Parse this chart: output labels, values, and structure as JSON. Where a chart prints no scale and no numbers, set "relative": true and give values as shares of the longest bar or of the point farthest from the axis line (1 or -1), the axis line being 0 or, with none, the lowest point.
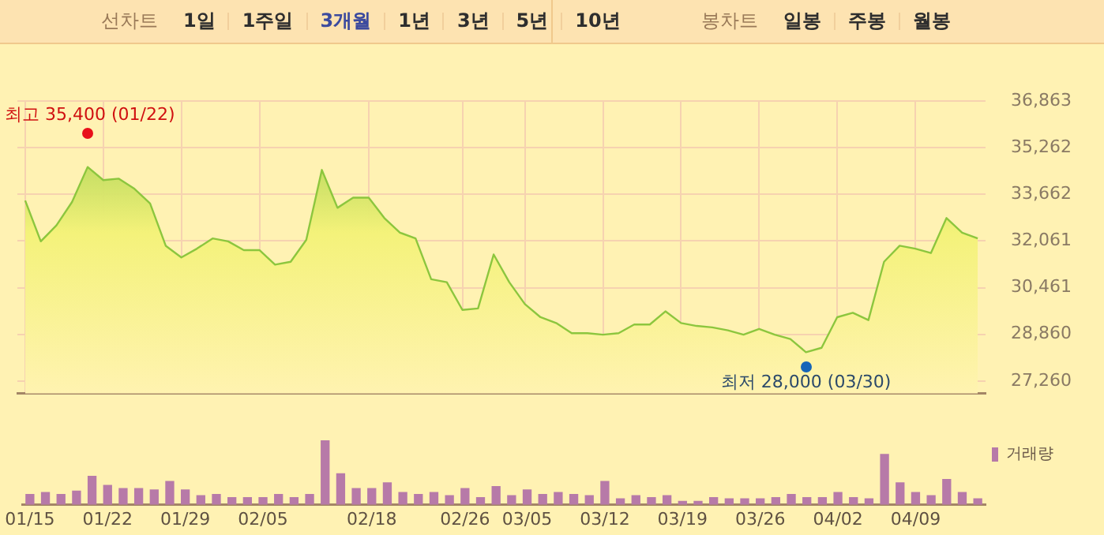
{
  "chart_data": [
    {
      "type": "other",
      "annotations": [
        "선차트",
        "1일",
        "1주일",
        "3개월",
        "1년",
        "3년",
        "5년",
        "10년",
        "봉차트",
        "일봉",
        "주봉",
        "월봉"
      ]
    },
    {
      "type": "area",
      "color": "#8cc63e",
      "grid": true,
      "tick_labels": "y",
      "categories": [
        null,
        null,
        null,
        null,
        null,
        null,
        null,
        null,
        null,
        null,
        null,
        null,
        null,
        null,
        null,
        null,
        null,
        null,
        null,
        null,
        null,
        null,
        null,
        null,
        null,
        null,
        null,
        null,
        null,
        null,
        null,
        null,
        null,
        null,
        null,
        null,
        null,
        null,
        null,
        null,
        null,
        null,
        null,
        null,
        null,
        null,
        null,
        null,
        null,
        null,
        null,
        null,
        null,
        null,
        null,
        null,
        null,
        null,
        null,
        null,
        null,
        null
      ],
      "values": [
        33450,
        32050,
        32600,
        33400,
        34600,
        34150,
        34200,
        33850,
        33350,
        31900,
        31500,
        31800,
        32150,
        32050,
        31750,
        31750,
        31250,
        31350,
        32100,
        34500,
        33200,
        33550,
        33550,
        32850,
        32350,
        32150,
        30750,
        30650,
        29700,
        29750,
        31600,
        30650,
        29900,
        29450,
        29250,
        28900,
        28900,
        28850,
        28900,
        29200,
        29200,
        29650,
        29250,
        29150,
        29100,
        29000,
        28850,
        29050,
        28850,
        28700,
        28250,
        28400,
        29450,
        29600,
        29350,
        31350,
        31900,
        31800,
        31650,
        32850,
        32350,
        32150
      ],
      "ylim": [
        26830,
        36863
      ],
      "yticks": [
        {
          "value": 27260,
          "label": "27,260"
        },
        {
          "value": 28860,
          "label": "28,860"
        },
        {
          "value": 30461,
          "label": "30,461"
        },
        {
          "value": 32061,
          "label": "32,061"
        },
        {
          "value": 33662,
          "label": "33,662"
        },
        {
          "value": 35262,
          "label": "35,262"
        },
        {
          "value": 36863,
          "label": "36,863"
        }
      ],
      "annotations": [
        "최고 35,400 (01/22)",
        "최저 28,000 (03/30)"
      ]
    },
    {
      "type": "bar",
      "relative": true,
      "tick_labels": "x",
      "legend": "top right",
      "categories": [
        "01/15",
        null,
        null,
        null,
        null,
        "01/22",
        null,
        null,
        null,
        null,
        "01/29",
        null,
        null,
        null,
        null,
        "02/05",
        null,
        null,
        null,
        null,
        null,
        null,
        "02/18",
        null,
        null,
        null,
        null,
        null,
        "02/26",
        null,
        null,
        null,
        "03/05",
        null,
        null,
        null,
        null,
        "03/12",
        null,
        null,
        null,
        null,
        "03/19",
        null,
        null,
        null,
        null,
        "03/26",
        null,
        null,
        null,
        null,
        "04/02",
        null,
        null,
        null,
        null,
        "04/09",
        null,
        null,
        null,
        null
      ],
      "series": [
        {
          "name": "거래량",
          "color": "#b77aa8",
          "values": [
            0.16,
            0.19,
            0.16,
            0.21,
            0.44,
            0.3,
            0.25,
            0.25,
            0.23,
            0.36,
            0.23,
            0.14,
            0.16,
            0.11,
            0.11,
            0.11,
            0.16,
            0.11,
            0.16,
            1,
            0.48,
            0.25,
            0.25,
            0.34,
            0.19,
            0.16,
            0.19,
            0.14,
            0.25,
            0.11,
            0.28,
            0.14,
            0.23,
            0.16,
            0.19,
            0.16,
            0.14,
            0.36,
            0.09,
            0.14,
            0.11,
            0.14,
            0.05,
            0.05,
            0.11,
            0.09,
            0.09,
            0.09,
            0.11,
            0.16,
            0.11,
            0.11,
            0.19,
            0.11,
            0.09,
            0.78,
            0.34,
            0.19,
            0.14,
            0.39,
            0.19,
            0.09
          ]
        }
      ]
    }
  ]
}
